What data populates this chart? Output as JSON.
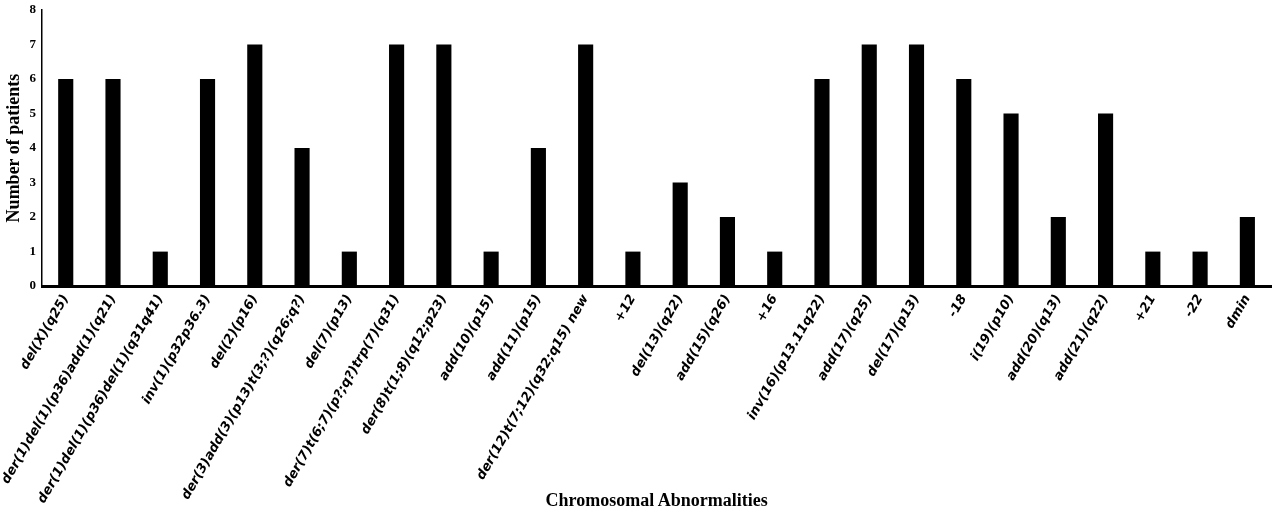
{
  "chart_data": {
    "type": "bar",
    "xlabel": "Chromosomal Abnormalities",
    "ylabel": "Number of patients",
    "categories": [
      "del(X)(q25)",
      "der(1)del(1)(p36)add(1)(q21)",
      "der(1)del(1)(p36)del(1)(q31q41)",
      "inv(1)(p32p36.3)",
      "del(2)(p16)",
      "der(3)add(3)(p13)t(3;?)(q26;q?)",
      "del(7)(p13)",
      "der(7)t(6;7)(p?;q?)trp(7)(q31)",
      "der(8)t(1;8)(q12;p23)",
      "add(10)(p15)",
      "add(11)(p15)",
      "der(12)t(7;12)(q32;q15) new",
      "+12",
      "del(13)(q22)",
      "add(15)(q26)",
      "+16",
      "inv(16)(p13.11q22)",
      "add(17)(q25)",
      "del(17)(p13)",
      "-18",
      "i(19)(p10)",
      "add(20)(q13)",
      "add(21)(q22)",
      "+21",
      "-22",
      "dmin"
    ],
    "values": [
      6,
      6,
      1,
      6,
      7,
      4,
      1,
      7,
      7,
      1,
      4,
      7,
      1,
      3,
      2,
      1,
      6,
      7,
      7,
      6,
      5,
      2,
      5,
      1,
      1,
      2
    ],
    "color": "#000000",
    "ylim": [
      0,
      8
    ],
    "yticks": [
      0,
      1,
      2,
      3,
      4,
      5,
      6,
      7,
      8
    ],
    "grid": false,
    "legend": false
  }
}
